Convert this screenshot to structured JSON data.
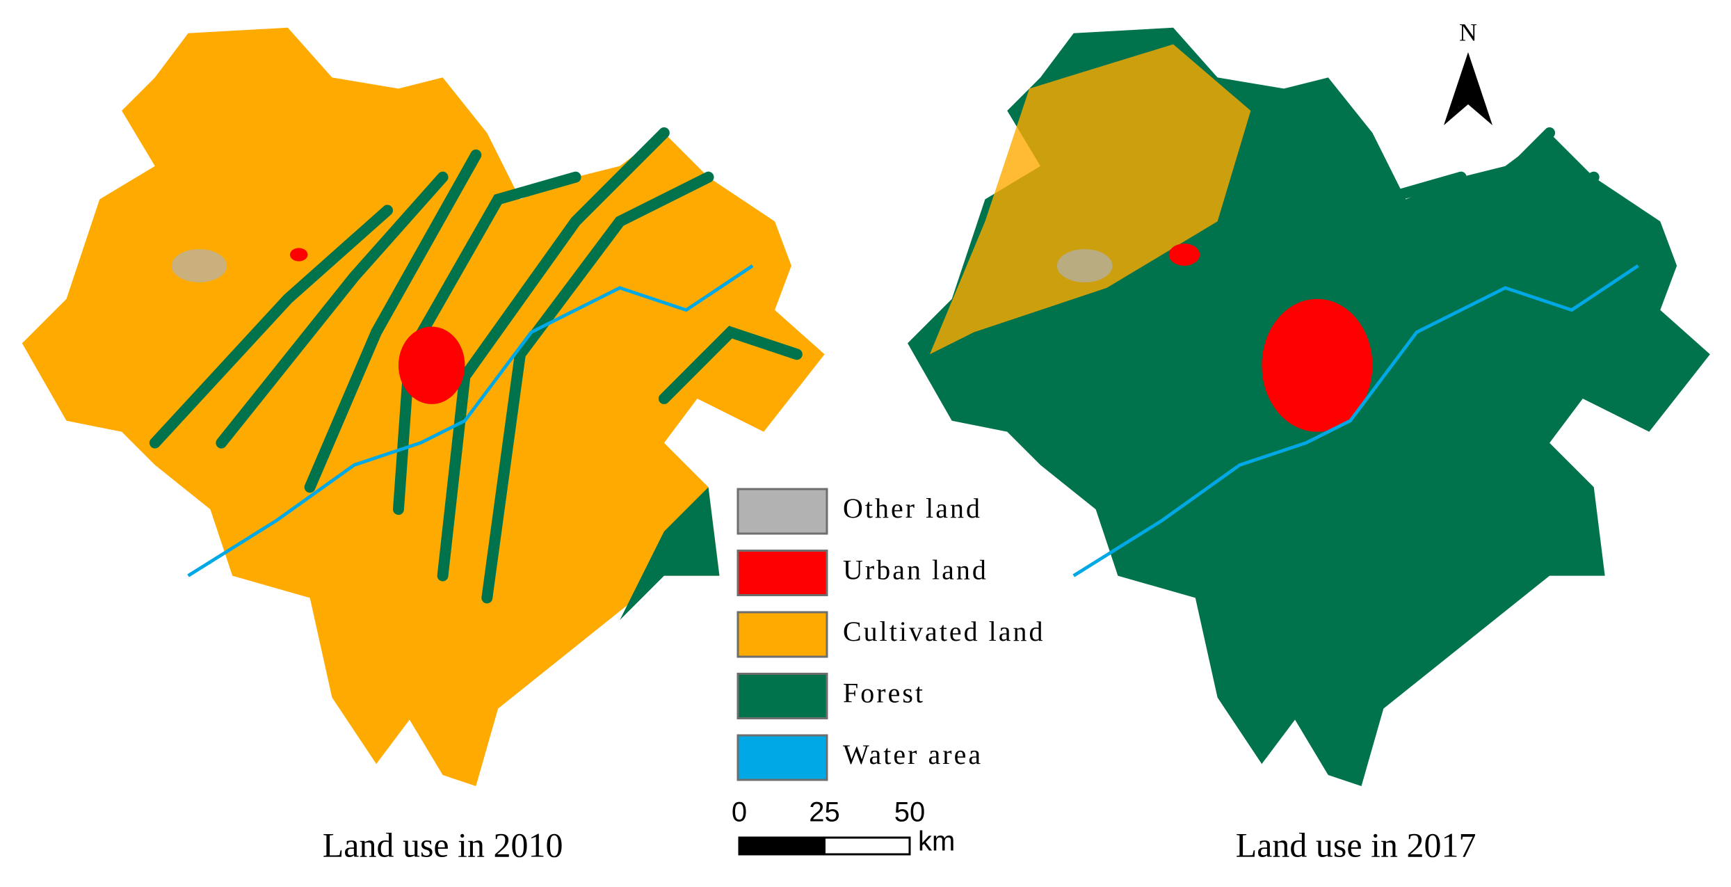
{
  "maps": [
    {
      "title": "Land use in 2010"
    },
    {
      "title": "Land use in 2017"
    }
  ],
  "legend": {
    "items": [
      {
        "label": "Other land",
        "color": "#b2b2b2"
      },
      {
        "label": "Urban land",
        "color": "#ff0000"
      },
      {
        "label": "Cultivated land",
        "color": "#ffaa00"
      },
      {
        "label": "Forest",
        "color": "#00734c"
      },
      {
        "label": "Water area",
        "color": "#00a9e6"
      }
    ]
  },
  "scale_bar": {
    "ticks": [
      0,
      25,
      50
    ],
    "unit": "km"
  },
  "north_arrow": {
    "label": "N"
  }
}
